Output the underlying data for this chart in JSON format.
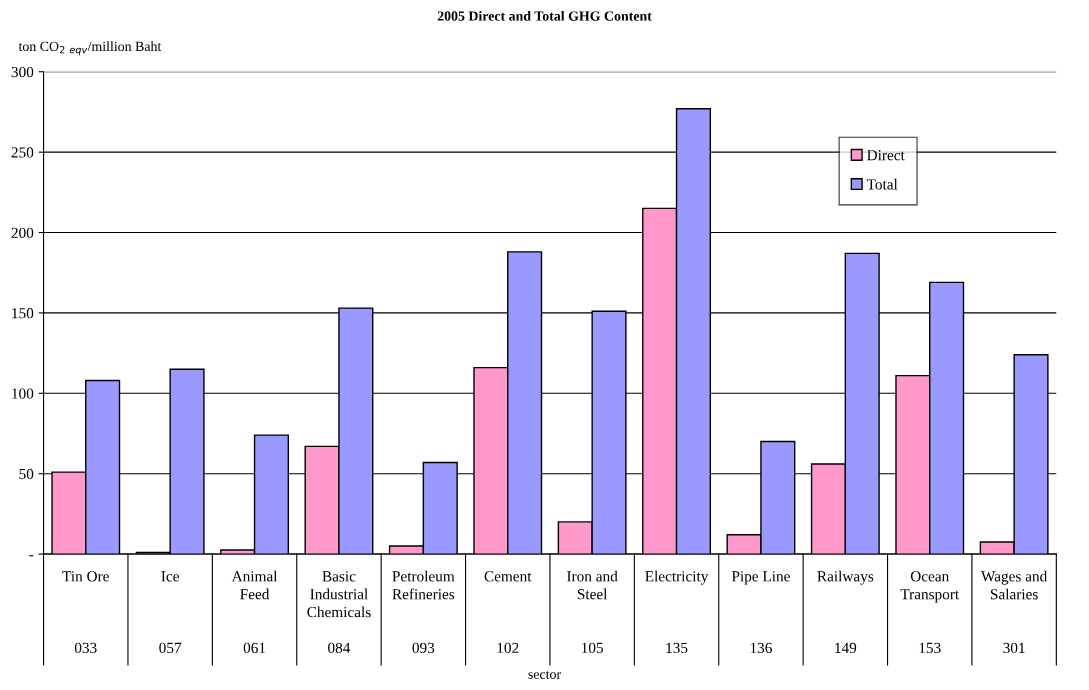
{
  "chart_data": {
    "type": "bar",
    "title": "2005 Direct and Total GHG Content",
    "ylabel": "ton CO$_{2}$ $_{eqv}$/million Baht",
    "annotations": [
      "sector"
    ],
    "categories": [
      "Tin Ore\n033",
      "Ice\n057",
      "Animal\nFeed\n061",
      "Basic\nIndustrial\nChemicals\n084",
      "Petroleum\nRefineries\n093",
      "Cement\n102",
      "Iron and\nSteel\n105",
      "Electricity\n135",
      "Pipe Line\n136",
      "Railways\n149",
      "Ocean\nTransport\n153",
      "Wages and\nSalaries\n301"
    ],
    "series": [
      {
        "name": "Direct",
        "color": "#ff99cc",
        "values": [
          51,
          1,
          2.5,
          67,
          5,
          116,
          20,
          215,
          12,
          56,
          111,
          7.5
        ]
      },
      {
        "name": "Total",
        "color": "#9999ff",
        "values": [
          108,
          115,
          74,
          153,
          57,
          188,
          151,
          277,
          70,
          187,
          169,
          124
        ]
      }
    ],
    "ylim": [
      0,
      300
    ],
    "yticks": [
      {
        "value": 0,
        "label": "-"
      },
      50,
      100,
      150,
      200,
      250,
      300
    ],
    "grid": "y",
    "legend": "top right"
  }
}
